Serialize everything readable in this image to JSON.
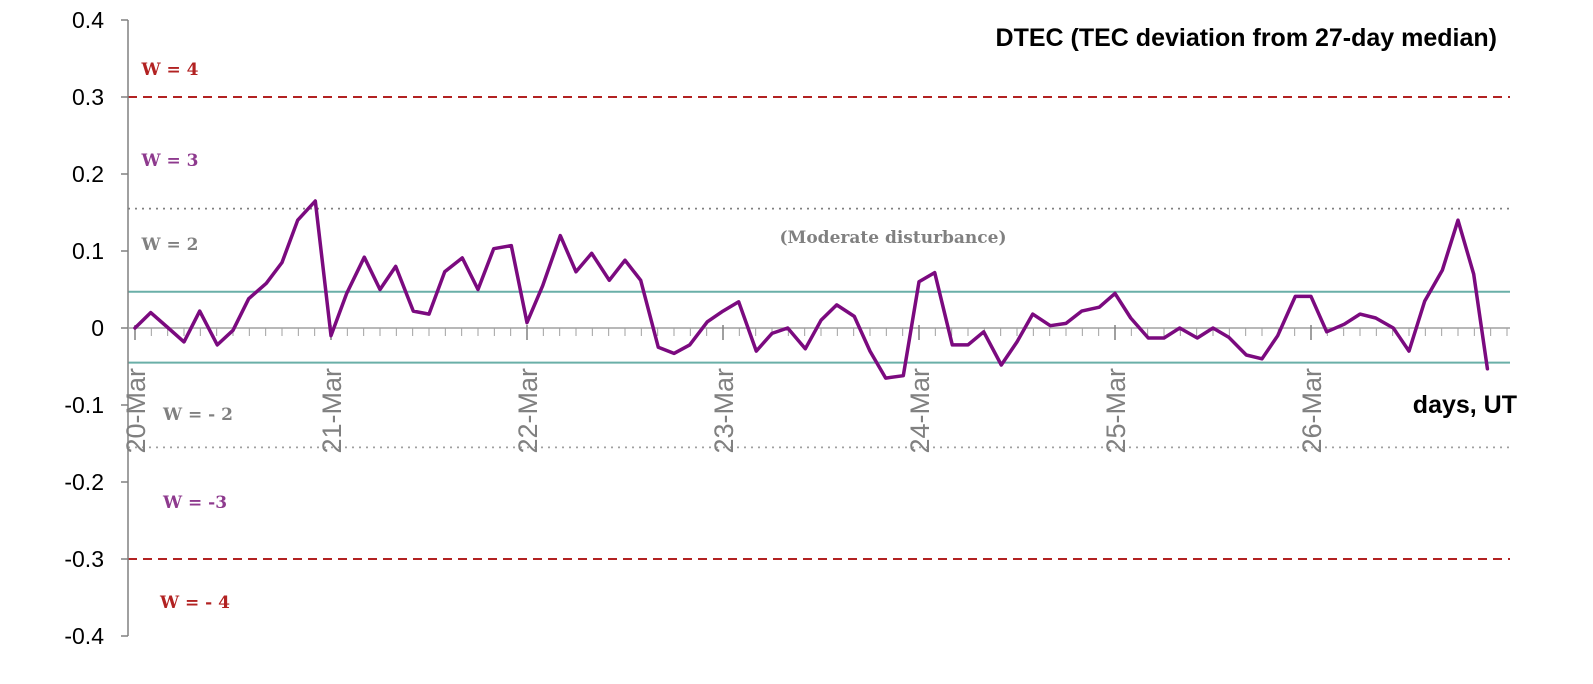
{
  "chart_data": {
    "type": "line",
    "title": "DTEC (TEC deviation from 27-day median)",
    "xlabel": "days, UT",
    "ylabel": "",
    "ylim": [
      -0.4,
      0.4
    ],
    "yticks": [
      "0.4",
      "0.3",
      "0.2",
      "0.1",
      "0",
      "-0.1",
      "-0.2",
      "-0.3",
      "-0.4"
    ],
    "xlim": [
      0,
      7.1
    ],
    "categories": [
      "20-Mar",
      "21-Mar",
      "22-Mar",
      "23-Mar",
      "24-Mar",
      "25-Mar",
      "26-Mar"
    ],
    "grid": false,
    "series": [
      {
        "color": "#7B0A7F",
        "points": [
          [
            0.0,
            0.0
          ],
          [
            0.08,
            0.02
          ],
          [
            0.17,
            0.0
          ],
          [
            0.25,
            -0.018
          ],
          [
            0.33,
            0.022
          ],
          [
            0.42,
            -0.022
          ],
          [
            0.5,
            -0.003
          ],
          [
            0.58,
            0.038
          ],
          [
            0.67,
            0.058
          ],
          [
            0.75,
            0.085
          ],
          [
            0.83,
            0.14
          ],
          [
            0.92,
            0.165
          ],
          [
            1.0,
            -0.01
          ],
          [
            1.08,
            0.045
          ],
          [
            1.17,
            0.092
          ],
          [
            1.25,
            0.05
          ],
          [
            1.33,
            0.08
          ],
          [
            1.42,
            0.022
          ],
          [
            1.5,
            0.018
          ],
          [
            1.58,
            0.073
          ],
          [
            1.67,
            0.091
          ],
          [
            1.75,
            0.05
          ],
          [
            1.83,
            0.103
          ],
          [
            1.92,
            0.107
          ],
          [
            2.0,
            0.007
          ],
          [
            2.08,
            0.055
          ],
          [
            2.17,
            0.12
          ],
          [
            2.25,
            0.073
          ],
          [
            2.33,
            0.097
          ],
          [
            2.42,
            0.062
          ],
          [
            2.5,
            0.088
          ],
          [
            2.58,
            0.062
          ],
          [
            2.67,
            -0.025
          ],
          [
            2.75,
            -0.033
          ],
          [
            2.83,
            -0.022
          ],
          [
            2.92,
            0.008
          ],
          [
            3.0,
            0.022
          ],
          [
            3.08,
            0.034
          ],
          [
            3.17,
            -0.03
          ],
          [
            3.25,
            -0.007
          ],
          [
            3.33,
            0.0
          ],
          [
            3.42,
            -0.027
          ],
          [
            3.5,
            0.01
          ],
          [
            3.58,
            0.03
          ],
          [
            3.67,
            0.015
          ],
          [
            3.75,
            -0.03
          ],
          [
            3.83,
            -0.065
          ],
          [
            3.92,
            -0.062
          ],
          [
            4.0,
            0.06
          ],
          [
            4.08,
            0.072
          ],
          [
            4.17,
            -0.022
          ],
          [
            4.25,
            -0.022
          ],
          [
            4.33,
            -0.005
          ],
          [
            4.42,
            -0.048
          ],
          [
            4.5,
            -0.018
          ],
          [
            4.58,
            0.018
          ],
          [
            4.67,
            0.003
          ],
          [
            4.75,
            0.006
          ],
          [
            4.83,
            0.022
          ],
          [
            4.92,
            0.027
          ],
          [
            5.0,
            0.045
          ],
          [
            5.08,
            0.013
          ],
          [
            5.17,
            -0.013
          ],
          [
            5.25,
            -0.013
          ],
          [
            5.33,
            0.0
          ],
          [
            5.42,
            -0.013
          ],
          [
            5.5,
            0.0
          ],
          [
            5.58,
            -0.012
          ],
          [
            5.67,
            -0.035
          ],
          [
            5.75,
            -0.04
          ],
          [
            5.83,
            -0.01
          ],
          [
            5.92,
            0.041
          ],
          [
            6.0,
            0.041
          ],
          [
            6.08,
            -0.005
          ],
          [
            6.17,
            0.005
          ],
          [
            6.25,
            0.018
          ],
          [
            6.33,
            0.013
          ],
          [
            6.42,
            0.0
          ],
          [
            6.5,
            -0.03
          ],
          [
            6.58,
            0.035
          ],
          [
            6.67,
            0.075
          ],
          [
            6.75,
            0.14
          ],
          [
            6.83,
            0.07
          ],
          [
            6.9,
            -0.053
          ]
        ]
      }
    ],
    "threshold_lines": [
      {
        "value": 0.3,
        "style": "dashed",
        "color": "#B22222"
      },
      {
        "value": 0.155,
        "style": "dotted",
        "color": "#808080"
      },
      {
        "value": 0.047,
        "style": "solid",
        "color": "#6AAFA8"
      },
      {
        "value": -0.045,
        "style": "solid",
        "color": "#6AAFA8"
      },
      {
        "value": -0.155,
        "style": "dotted",
        "color": "#A0A0A0"
      },
      {
        "value": -0.3,
        "style": "dashed",
        "color": "#B22222"
      }
    ],
    "band_labels": [
      {
        "text": "W = 4",
        "color": "#B22222"
      },
      {
        "text": "W = 3",
        "color": "#8E3A8E"
      },
      {
        "text": "W = 2",
        "color": "#808080"
      },
      {
        "text": "(Moderate disturbance)",
        "color": "#808080"
      },
      {
        "text": "W = - 2",
        "color": "#808080"
      },
      {
        "text": "W = -3",
        "color": "#8E3A8E"
      },
      {
        "text": "W = - 4",
        "color": "#B22222"
      }
    ]
  }
}
